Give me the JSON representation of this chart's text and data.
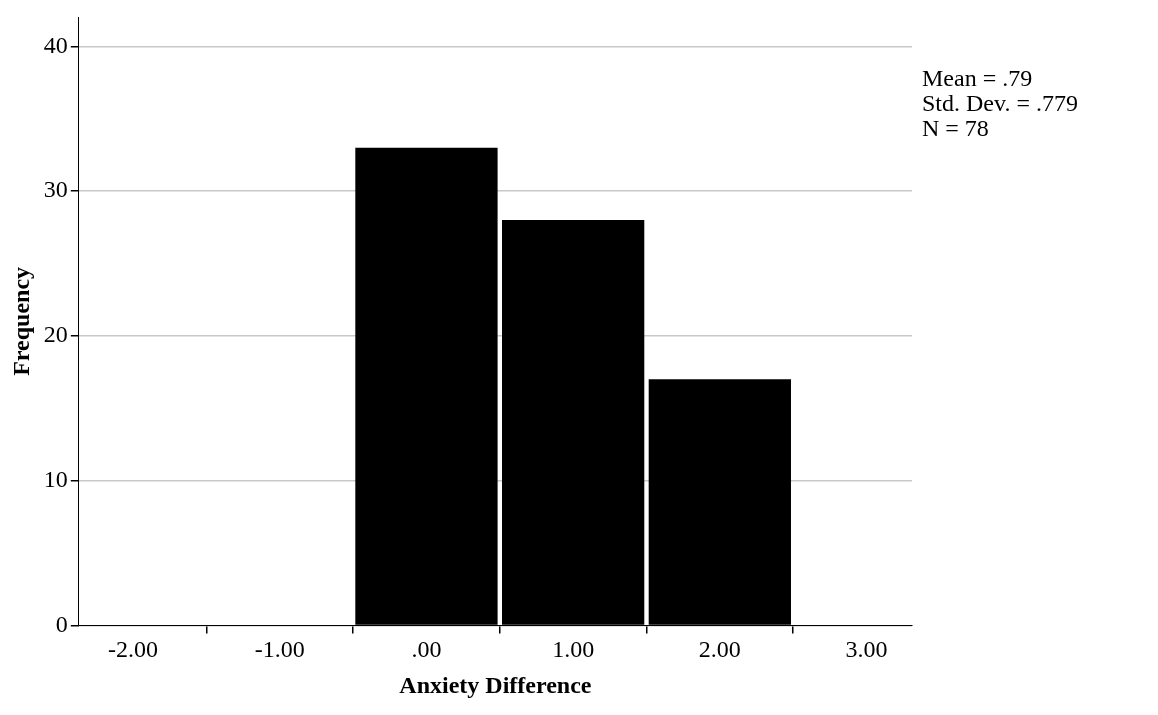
{
  "chart_data": {
    "type": "histogram",
    "xlabel": "Anxiety Difference",
    "ylabel": "Frequency",
    "bins": [
      -0.5,
      0.5,
      1.5,
      2.5
    ],
    "values": [
      33,
      28,
      17
    ],
    "color": "#000000",
    "xlim": [
      -2.37,
      3.31
    ],
    "xticks": [
      {
        "value": -2,
        "label": "-2.00"
      },
      {
        "value": -1,
        "label": "-1.00"
      },
      {
        "value": 0,
        "label": ".00"
      },
      {
        "value": 1,
        "label": "1.00"
      },
      {
        "value": 2,
        "label": "2.00"
      },
      {
        "value": 3,
        "label": "3.00"
      }
    ],
    "ylim": [
      0,
      42
    ],
    "yticks": [
      0,
      10,
      20,
      30,
      40
    ],
    "grid": "y",
    "annotations": [
      "Mean = .79",
      "Std. Dev. = .779",
      "N = 78"
    ]
  }
}
